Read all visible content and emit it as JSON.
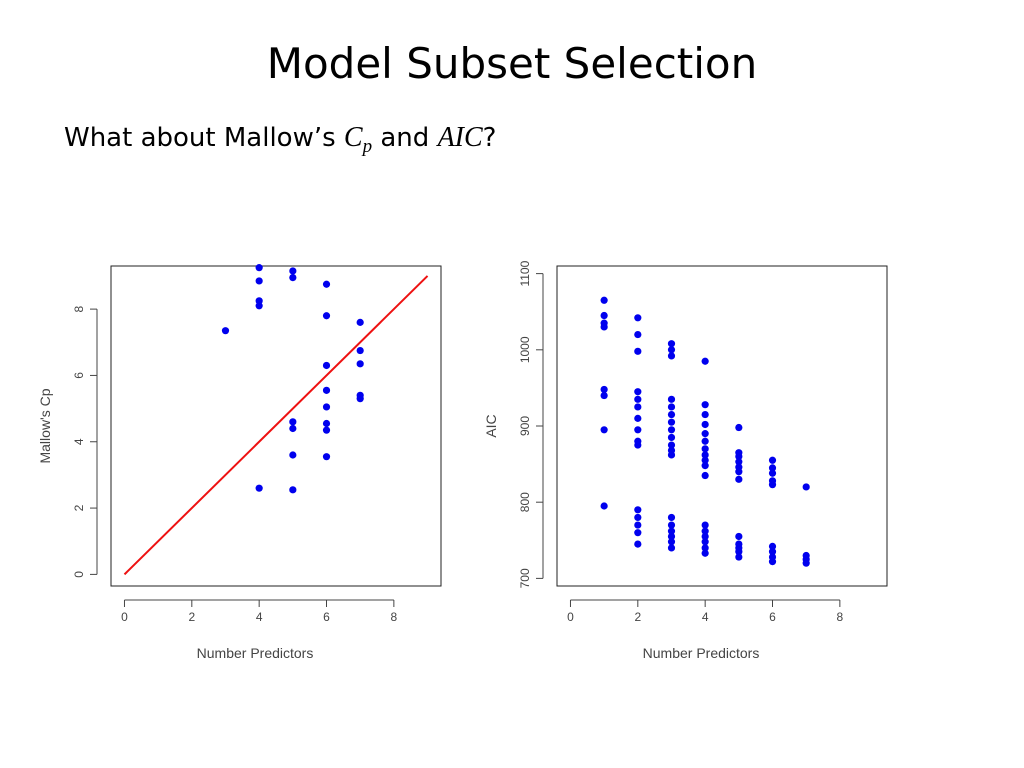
{
  "slide": {
    "title": "Model Subset Selection",
    "subtitle_pre": "What about Mallow’s ",
    "subtitle_cp_main": "C",
    "subtitle_cp_sub": "p",
    "subtitle_mid": " and ",
    "subtitle_aic": "AIC",
    "subtitle_end": "?"
  },
  "colors": {
    "points": "#0000ee",
    "line": "#ee1111",
    "axis": "#444444"
  },
  "chart_data": [
    {
      "type": "scatter",
      "xlabel": "Number Predictors",
      "ylabel": "Mallow's Cp",
      "xlim": [
        -0.4,
        9.4
      ],
      "ylim": [
        -0.35,
        9.3
      ],
      "xticks": [
        0,
        2,
        4,
        6,
        8
      ],
      "yticks": [
        0,
        2,
        4,
        6,
        8
      ],
      "grid": false,
      "points": [
        [
          3,
          7.35
        ],
        [
          4,
          9.25
        ],
        [
          4,
          8.85
        ],
        [
          4,
          8.25
        ],
        [
          4,
          8.1
        ],
        [
          4,
          2.6
        ],
        [
          5,
          9.15
        ],
        [
          5,
          8.95
        ],
        [
          5,
          4.6
        ],
        [
          5,
          4.4
        ],
        [
          5,
          3.6
        ],
        [
          5,
          2.55
        ],
        [
          6,
          8.75
        ],
        [
          6,
          7.8
        ],
        [
          6,
          6.3
        ],
        [
          6,
          5.55
        ],
        [
          6,
          5.05
        ],
        [
          6,
          4.55
        ],
        [
          6,
          4.35
        ],
        [
          6,
          3.55
        ],
        [
          7,
          7.6
        ],
        [
          7,
          6.75
        ],
        [
          7,
          6.35
        ],
        [
          7,
          5.4
        ],
        [
          7,
          5.3
        ]
      ],
      "reference_line": {
        "from": [
          0,
          0
        ],
        "to": [
          9,
          9
        ]
      }
    },
    {
      "type": "scatter",
      "xlabel": "Number Predictors",
      "ylabel": "AIC",
      "xlim": [
        -0.4,
        9.4
      ],
      "ylim": [
        690,
        1110
      ],
      "xticks": [
        0,
        2,
        4,
        6,
        8
      ],
      "yticks": [
        700,
        800,
        900,
        1000,
        1100
      ],
      "grid": false,
      "points": [
        [
          1,
          1065
        ],
        [
          1,
          1045
        ],
        [
          1,
          1035
        ],
        [
          1,
          1030
        ],
        [
          1,
          948
        ],
        [
          1,
          940
        ],
        [
          1,
          895
        ],
        [
          1,
          795
        ],
        [
          2,
          1042
        ],
        [
          2,
          1020
        ],
        [
          2,
          998
        ],
        [
          2,
          945
        ],
        [
          2,
          935
        ],
        [
          2,
          925
        ],
        [
          2,
          910
        ],
        [
          2,
          895
        ],
        [
          2,
          880
        ],
        [
          2,
          875
        ],
        [
          2,
          790
        ],
        [
          2,
          780
        ],
        [
          2,
          770
        ],
        [
          2,
          760
        ],
        [
          2,
          745
        ],
        [
          3,
          1008
        ],
        [
          3,
          1000
        ],
        [
          3,
          992
        ],
        [
          3,
          935
        ],
        [
          3,
          925
        ],
        [
          3,
          915
        ],
        [
          3,
          905
        ],
        [
          3,
          895
        ],
        [
          3,
          885
        ],
        [
          3,
          875
        ],
        [
          3,
          868
        ],
        [
          3,
          862
        ],
        [
          3,
          780
        ],
        [
          3,
          770
        ],
        [
          3,
          762
        ],
        [
          3,
          755
        ],
        [
          3,
          748
        ],
        [
          3,
          740
        ],
        [
          4,
          985
        ],
        [
          4,
          928
        ],
        [
          4,
          915
        ],
        [
          4,
          902
        ],
        [
          4,
          890
        ],
        [
          4,
          880
        ],
        [
          4,
          870
        ],
        [
          4,
          862
        ],
        [
          4,
          855
        ],
        [
          4,
          848
        ],
        [
          4,
          835
        ],
        [
          4,
          770
        ],
        [
          4,
          762
        ],
        [
          4,
          755
        ],
        [
          4,
          748
        ],
        [
          4,
          740
        ],
        [
          4,
          733
        ],
        [
          5,
          898
        ],
        [
          5,
          865
        ],
        [
          5,
          860
        ],
        [
          5,
          853
        ],
        [
          5,
          846
        ],
        [
          5,
          840
        ],
        [
          5,
          830
        ],
        [
          5,
          755
        ],
        [
          5,
          745
        ],
        [
          5,
          740
        ],
        [
          5,
          735
        ],
        [
          5,
          728
        ],
        [
          6,
          855
        ],
        [
          6,
          845
        ],
        [
          6,
          838
        ],
        [
          6,
          828
        ],
        [
          6,
          823
        ],
        [
          6,
          742
        ],
        [
          6,
          735
        ],
        [
          6,
          728
        ],
        [
          6,
          722
        ],
        [
          7,
          820
        ],
        [
          7,
          730
        ],
        [
          7,
          725
        ],
        [
          7,
          720
        ]
      ]
    }
  ]
}
